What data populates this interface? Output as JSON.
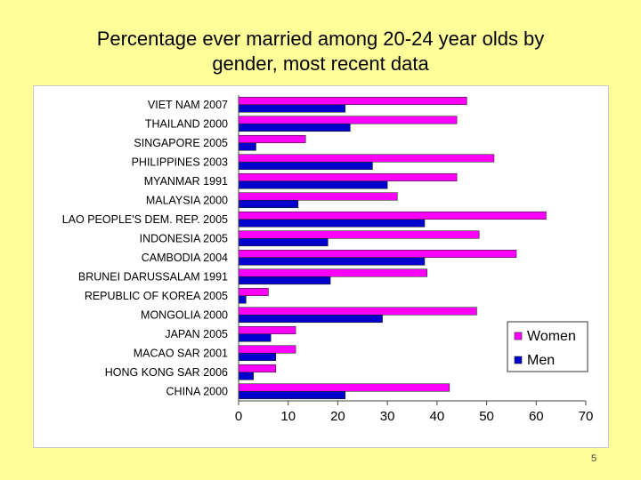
{
  "slide": {
    "title_line1": "Percentage ever married among 20-24 year olds by",
    "title_line2": "gender, most recent data",
    "page_number": "5"
  },
  "chart_data": {
    "type": "bar",
    "orientation": "horizontal",
    "categories": [
      "VIET NAM 2007",
      "THAILAND 2000",
      "SINGAPORE 2005",
      "PHILIPPINES 2003",
      "MYANMAR 1991",
      "MALAYSIA 2000",
      "LAO PEOPLE'S DEM. REP. 2005",
      "INDONESIA 2005",
      "CAMBODIA 2004",
      "BRUNEI DARUSSALAM 1991",
      "REPUBLIC OF KOREA 2005",
      "MONGOLIA 2000",
      "JAPAN 2005",
      "MACAO SAR 2001",
      "HONG KONG SAR 2006",
      "CHINA 2000"
    ],
    "series": [
      {
        "name": "Women",
        "color": "#ff00ff",
        "values": [
          46,
          44,
          13.5,
          51.5,
          44,
          32,
          62,
          48.5,
          56,
          38,
          6,
          48,
          11.5,
          11.5,
          7.5,
          42.5
        ]
      },
      {
        "name": "Men",
        "color": "#0000cc",
        "values": [
          21.5,
          22.5,
          3.5,
          27,
          30,
          12,
          37.5,
          18,
          37.5,
          18.5,
          1.5,
          29,
          6.5,
          7.5,
          3,
          21.5
        ]
      }
    ],
    "xlim": [
      0,
      70
    ],
    "xticks": [
      "0",
      "10",
      "20",
      "30",
      "40",
      "50",
      "60",
      "70"
    ],
    "xlabel": "",
    "ylabel": "",
    "grid": false,
    "legend_position": "right"
  }
}
